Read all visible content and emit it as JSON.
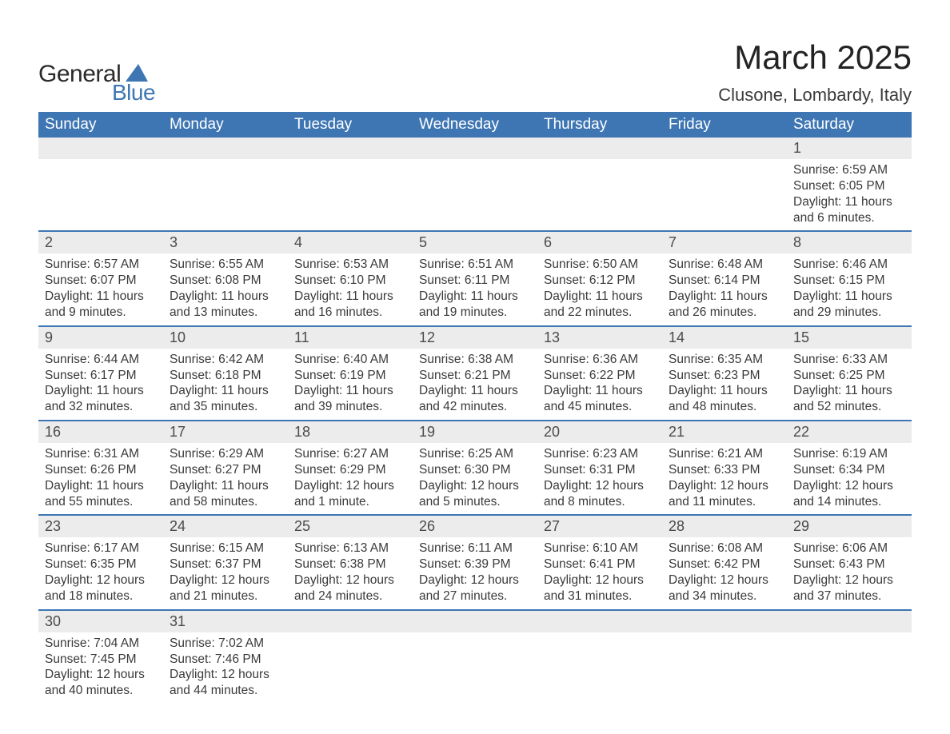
{
  "logo": {
    "general": "General",
    "blue": "Blue",
    "sail_color": "#3e76b3"
  },
  "title": "March 2025",
  "subtitle": "Clusone, Lombardy, Italy",
  "colors": {
    "header_bg": "#3e76b3",
    "header_text": "#ffffff",
    "daynum_bg": "#ececec",
    "row_border": "#3e76b3",
    "body_text": "#3a3a3a",
    "page_bg": "#ffffff"
  },
  "typography": {
    "title_fontsize_pt": 32,
    "subtitle_fontsize_pt": 17,
    "header_fontsize_pt": 14,
    "cell_fontsize_pt": 12
  },
  "day_headers": [
    "Sunday",
    "Monday",
    "Tuesday",
    "Wednesday",
    "Thursday",
    "Friday",
    "Saturday"
  ],
  "weeks": [
    [
      null,
      null,
      null,
      null,
      null,
      null,
      {
        "n": "1",
        "sr": "Sunrise: 6:59 AM",
        "ss": "Sunset: 6:05 PM",
        "d1": "Daylight: 11 hours",
        "d2": "and 6 minutes."
      }
    ],
    [
      {
        "n": "2",
        "sr": "Sunrise: 6:57 AM",
        "ss": "Sunset: 6:07 PM",
        "d1": "Daylight: 11 hours",
        "d2": "and 9 minutes."
      },
      {
        "n": "3",
        "sr": "Sunrise: 6:55 AM",
        "ss": "Sunset: 6:08 PM",
        "d1": "Daylight: 11 hours",
        "d2": "and 13 minutes."
      },
      {
        "n": "4",
        "sr": "Sunrise: 6:53 AM",
        "ss": "Sunset: 6:10 PM",
        "d1": "Daylight: 11 hours",
        "d2": "and 16 minutes."
      },
      {
        "n": "5",
        "sr": "Sunrise: 6:51 AM",
        "ss": "Sunset: 6:11 PM",
        "d1": "Daylight: 11 hours",
        "d2": "and 19 minutes."
      },
      {
        "n": "6",
        "sr": "Sunrise: 6:50 AM",
        "ss": "Sunset: 6:12 PM",
        "d1": "Daylight: 11 hours",
        "d2": "and 22 minutes."
      },
      {
        "n": "7",
        "sr": "Sunrise: 6:48 AM",
        "ss": "Sunset: 6:14 PM",
        "d1": "Daylight: 11 hours",
        "d2": "and 26 minutes."
      },
      {
        "n": "8",
        "sr": "Sunrise: 6:46 AM",
        "ss": "Sunset: 6:15 PM",
        "d1": "Daylight: 11 hours",
        "d2": "and 29 minutes."
      }
    ],
    [
      {
        "n": "9",
        "sr": "Sunrise: 6:44 AM",
        "ss": "Sunset: 6:17 PM",
        "d1": "Daylight: 11 hours",
        "d2": "and 32 minutes."
      },
      {
        "n": "10",
        "sr": "Sunrise: 6:42 AM",
        "ss": "Sunset: 6:18 PM",
        "d1": "Daylight: 11 hours",
        "d2": "and 35 minutes."
      },
      {
        "n": "11",
        "sr": "Sunrise: 6:40 AM",
        "ss": "Sunset: 6:19 PM",
        "d1": "Daylight: 11 hours",
        "d2": "and 39 minutes."
      },
      {
        "n": "12",
        "sr": "Sunrise: 6:38 AM",
        "ss": "Sunset: 6:21 PM",
        "d1": "Daylight: 11 hours",
        "d2": "and 42 minutes."
      },
      {
        "n": "13",
        "sr": "Sunrise: 6:36 AM",
        "ss": "Sunset: 6:22 PM",
        "d1": "Daylight: 11 hours",
        "d2": "and 45 minutes."
      },
      {
        "n": "14",
        "sr": "Sunrise: 6:35 AM",
        "ss": "Sunset: 6:23 PM",
        "d1": "Daylight: 11 hours",
        "d2": "and 48 minutes."
      },
      {
        "n": "15",
        "sr": "Sunrise: 6:33 AM",
        "ss": "Sunset: 6:25 PM",
        "d1": "Daylight: 11 hours",
        "d2": "and 52 minutes."
      }
    ],
    [
      {
        "n": "16",
        "sr": "Sunrise: 6:31 AM",
        "ss": "Sunset: 6:26 PM",
        "d1": "Daylight: 11 hours",
        "d2": "and 55 minutes."
      },
      {
        "n": "17",
        "sr": "Sunrise: 6:29 AM",
        "ss": "Sunset: 6:27 PM",
        "d1": "Daylight: 11 hours",
        "d2": "and 58 minutes."
      },
      {
        "n": "18",
        "sr": "Sunrise: 6:27 AM",
        "ss": "Sunset: 6:29 PM",
        "d1": "Daylight: 12 hours",
        "d2": "and 1 minute."
      },
      {
        "n": "19",
        "sr": "Sunrise: 6:25 AM",
        "ss": "Sunset: 6:30 PM",
        "d1": "Daylight: 12 hours",
        "d2": "and 5 minutes."
      },
      {
        "n": "20",
        "sr": "Sunrise: 6:23 AM",
        "ss": "Sunset: 6:31 PM",
        "d1": "Daylight: 12 hours",
        "d2": "and 8 minutes."
      },
      {
        "n": "21",
        "sr": "Sunrise: 6:21 AM",
        "ss": "Sunset: 6:33 PM",
        "d1": "Daylight: 12 hours",
        "d2": "and 11 minutes."
      },
      {
        "n": "22",
        "sr": "Sunrise: 6:19 AM",
        "ss": "Sunset: 6:34 PM",
        "d1": "Daylight: 12 hours",
        "d2": "and 14 minutes."
      }
    ],
    [
      {
        "n": "23",
        "sr": "Sunrise: 6:17 AM",
        "ss": "Sunset: 6:35 PM",
        "d1": "Daylight: 12 hours",
        "d2": "and 18 minutes."
      },
      {
        "n": "24",
        "sr": "Sunrise: 6:15 AM",
        "ss": "Sunset: 6:37 PM",
        "d1": "Daylight: 12 hours",
        "d2": "and 21 minutes."
      },
      {
        "n": "25",
        "sr": "Sunrise: 6:13 AM",
        "ss": "Sunset: 6:38 PM",
        "d1": "Daylight: 12 hours",
        "d2": "and 24 minutes."
      },
      {
        "n": "26",
        "sr": "Sunrise: 6:11 AM",
        "ss": "Sunset: 6:39 PM",
        "d1": "Daylight: 12 hours",
        "d2": "and 27 minutes."
      },
      {
        "n": "27",
        "sr": "Sunrise: 6:10 AM",
        "ss": "Sunset: 6:41 PM",
        "d1": "Daylight: 12 hours",
        "d2": "and 31 minutes."
      },
      {
        "n": "28",
        "sr": "Sunrise: 6:08 AM",
        "ss": "Sunset: 6:42 PM",
        "d1": "Daylight: 12 hours",
        "d2": "and 34 minutes."
      },
      {
        "n": "29",
        "sr": "Sunrise: 6:06 AM",
        "ss": "Sunset: 6:43 PM",
        "d1": "Daylight: 12 hours",
        "d2": "and 37 minutes."
      }
    ],
    [
      {
        "n": "30",
        "sr": "Sunrise: 7:04 AM",
        "ss": "Sunset: 7:45 PM",
        "d1": "Daylight: 12 hours",
        "d2": "and 40 minutes."
      },
      {
        "n": "31",
        "sr": "Sunrise: 7:02 AM",
        "ss": "Sunset: 7:46 PM",
        "d1": "Daylight: 12 hours",
        "d2": "and 44 minutes."
      },
      null,
      null,
      null,
      null,
      null
    ]
  ]
}
